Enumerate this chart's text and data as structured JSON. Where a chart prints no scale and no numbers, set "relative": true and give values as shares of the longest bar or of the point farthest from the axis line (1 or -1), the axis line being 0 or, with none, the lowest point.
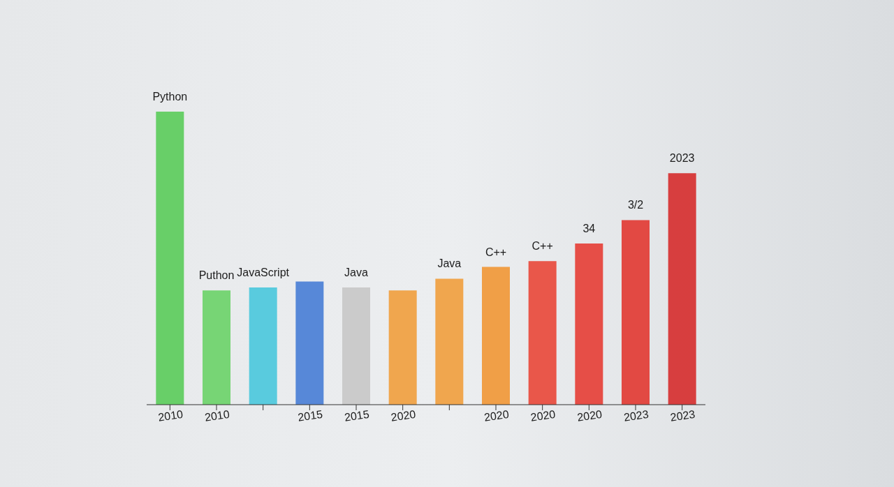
{
  "chart_data": {
    "type": "bar",
    "relative": true,
    "stacked": true,
    "categories": [
      "2010",
      "2010",
      null,
      "2015",
      "2015",
      "2020",
      null,
      "2020",
      "2020",
      "2020",
      "2023",
      "2023"
    ],
    "series": [
      {
        "name": "Python",
        "color": "#5ccc5c",
        "values": [
          1,
          null,
          null,
          null,
          null,
          null,
          null,
          null,
          null,
          null,
          null,
          null
        ]
      },
      {
        "name": "Puthon",
        "color": "#6cd26a",
        "values": [
          null,
          0.39,
          null,
          null,
          null,
          null,
          null,
          null,
          null,
          null,
          null,
          null
        ]
      },
      {
        "name": "JavaScript",
        "color": "#4cc8dc",
        "values": [
          null,
          null,
          0.4,
          null,
          null,
          null,
          null,
          null,
          null,
          null,
          null,
          null
        ]
      },
      {
        "color": "#4a7fd6",
        "values": [
          null,
          null,
          null,
          0.42,
          null,
          null,
          null,
          null,
          null,
          null,
          null,
          null
        ]
      },
      {
        "name": "Java",
        "color": "#c8c8c8",
        "values": [
          null,
          null,
          null,
          null,
          0.4,
          null,
          null,
          null,
          null,
          null,
          null,
          null
        ]
      },
      {
        "color": "#f0a040",
        "values": [
          null,
          null,
          null,
          null,
          null,
          0.39,
          null,
          null,
          null,
          null,
          null,
          null
        ]
      },
      {
        "name": "Java",
        "color": "#f0a040",
        "values": [
          null,
          null,
          null,
          null,
          null,
          null,
          0.43,
          null,
          null,
          null,
          null,
          null
        ]
      },
      {
        "name": "C++",
        "color": "#f09838",
        "values": [
          null,
          null,
          null,
          null,
          null,
          null,
          null,
          0.47,
          null,
          null,
          null,
          null
        ]
      },
      {
        "name": "C++",
        "color": "#e84a3c",
        "values": [
          null,
          null,
          null,
          null,
          null,
          null,
          null,
          null,
          0.49,
          null,
          null,
          null
        ]
      },
      {
        "name": "34",
        "color": "#e64038",
        "values": [
          null,
          null,
          null,
          null,
          null,
          null,
          null,
          null,
          null,
          0.55,
          null,
          null
        ]
      },
      {
        "name": "3/2",
        "color": "#e23c34",
        "values": [
          null,
          null,
          null,
          null,
          null,
          null,
          null,
          null,
          null,
          null,
          0.63,
          null
        ]
      },
      {
        "name": "2023",
        "color": "#d63030",
        "values": [
          null,
          null,
          null,
          null,
          null,
          null,
          null,
          null,
          null,
          null,
          null,
          0.79
        ]
      }
    ]
  }
}
